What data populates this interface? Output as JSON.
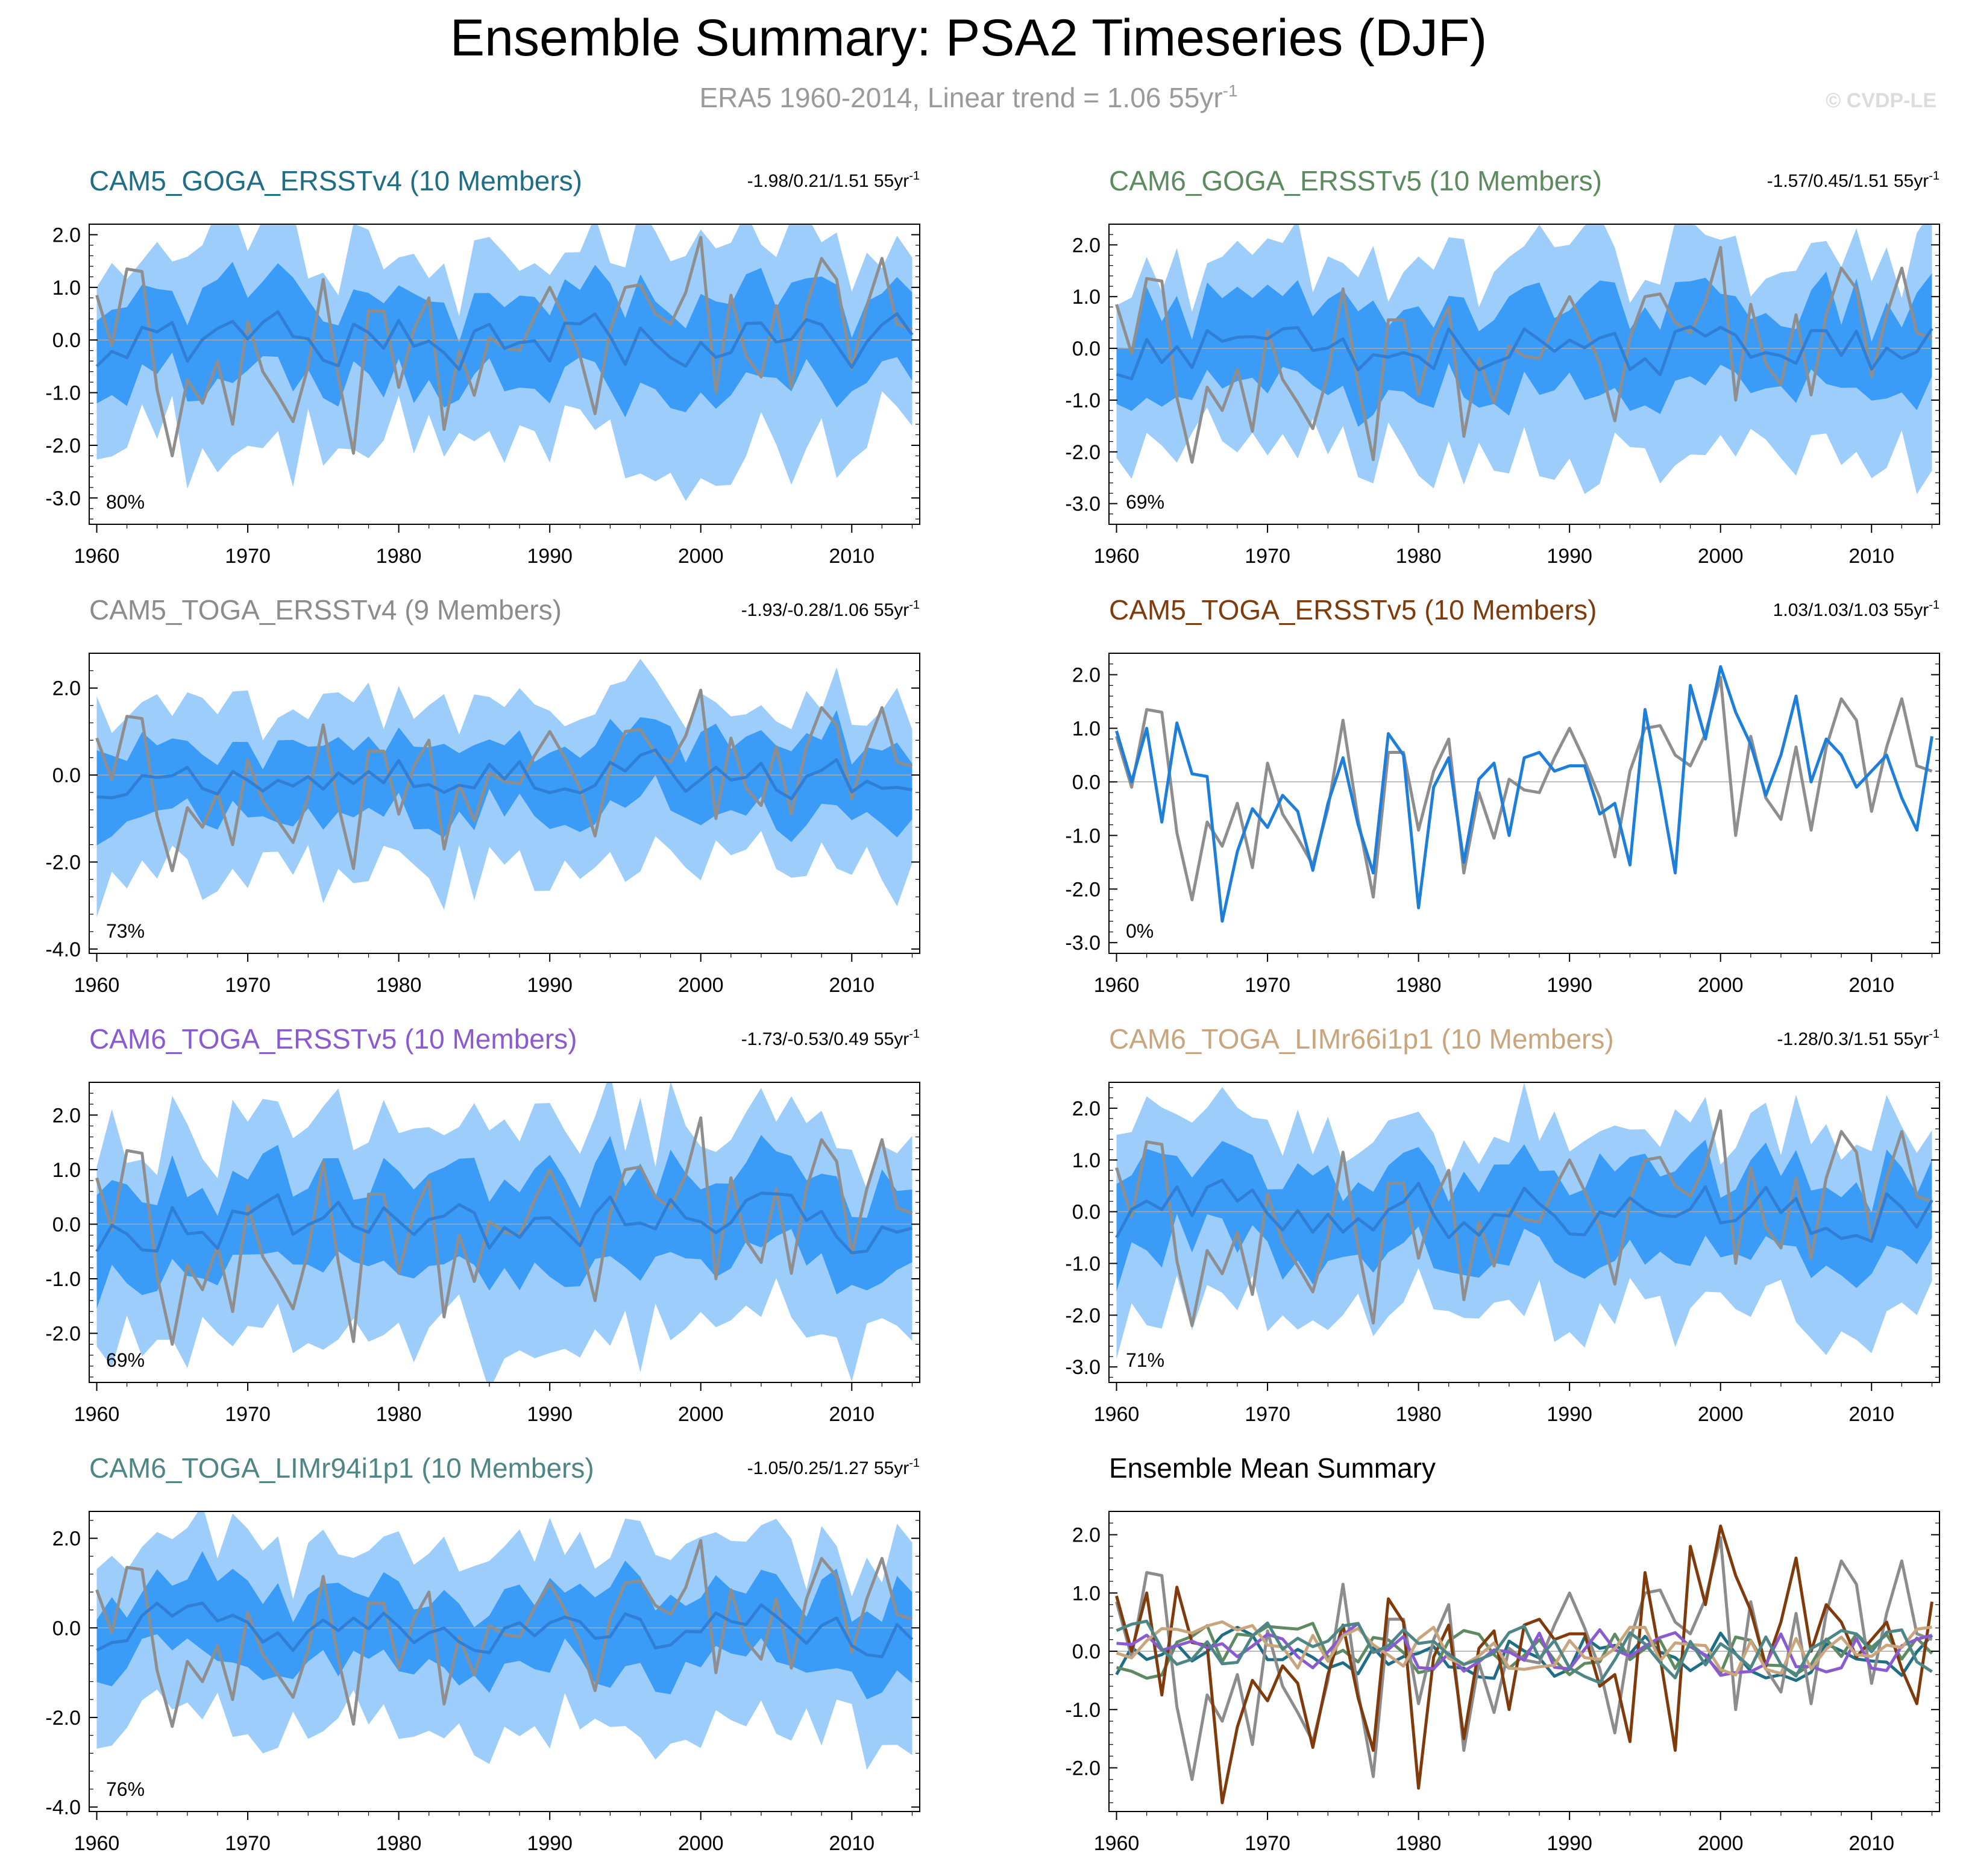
{
  "figure": {
    "title": "Ensemble Summary: PSA2 Timeseries (DJF)",
    "subtitle_main": "ERA5 1960-2014, Linear trend = 1.06 55yr",
    "subtitle_sup": "-1",
    "watermark": "© CVDP-LE"
  },
  "colors": {
    "outer_band": "#9dcdfb",
    "inner_band": "#3b9cf8",
    "ens_mean": "#2f7fd6",
    "obs": "#8e8e8e",
    "single_member": "#1e7fdb",
    "trend_unit": "55yr",
    "trend_unit_sup": "-1"
  },
  "x_tick_labels": [
    "1960",
    "1970",
    "1980",
    "1990",
    "2000",
    "2010"
  ],
  "chart_data": [
    {
      "type": "area",
      "name": "CAM5_GOGA_ERSSTv4",
      "title": "CAM5_GOGA_ERSSTv4 (10 Members)",
      "title_color": "#1f6e86",
      "trend_text": "-1.98/0.21/1.51",
      "percent_text": "80%",
      "ylim": [
        -3.5,
        2.2
      ],
      "yticks": [
        2.0,
        1.0,
        0.0,
        -1.0,
        -2.0,
        -3.0
      ],
      "ytick_labels": [
        "2.0",
        "1.0",
        "0.0",
        "-1.0",
        "-2.0",
        "-3.0"
      ],
      "seed": 11
    },
    {
      "type": "area",
      "name": "CAM6_GOGA_ERSSTv5",
      "title": "CAM6_GOGA_ERSSTv5 (10 Members)",
      "title_color": "#5e8a61",
      "trend_text": "-1.57/0.45/1.51",
      "percent_text": "69%",
      "ylim": [
        -3.4,
        2.4
      ],
      "yticks": [
        2.0,
        1.0,
        0.0,
        -1.0,
        -2.0,
        -3.0
      ],
      "ytick_labels": [
        "2.0",
        "1.0",
        "0.0",
        "-1.0",
        "-2.0",
        "-3.0"
      ],
      "seed": 23
    },
    {
      "type": "area",
      "name": "CAM5_TOGA_ERSSTv4",
      "title": "CAM5_TOGA_ERSSTv4 (9 Members)",
      "title_color": "#8c8c8c",
      "trend_text": "-1.93/-0.28/1.06",
      "percent_text": "73%",
      "ylim": [
        -4.1,
        2.8
      ],
      "yticks": [
        2.0,
        0.0,
        -2.0,
        -4.0
      ],
      "ytick_labels": [
        "2.0",
        "0.0",
        "-2.0",
        "-4.0"
      ],
      "seed": 37
    },
    {
      "type": "line",
      "name": "CAM5_TOGA_ERSSTv5",
      "title": "CAM5_TOGA_ERSSTv5 (10 Members)",
      "title_color": "#7f3b0c",
      "trend_text": "1.03/1.03/1.03",
      "percent_text": "0%",
      "ylim": [
        -3.2,
        2.4
      ],
      "yticks": [
        2.0,
        1.0,
        0.0,
        -1.0,
        -2.0,
        -3.0
      ],
      "ytick_labels": [
        "2.0",
        "1.0",
        "0.0",
        "-1.0",
        "-2.0",
        "-3.0"
      ],
      "member": [
        0.95,
        0.0,
        1.0,
        -0.75,
        1.1,
        0.15,
        0.1,
        -2.6,
        -1.3,
        -0.5,
        -0.85,
        -0.25,
        -0.55,
        -1.65,
        -0.4,
        0.45,
        -0.8,
        -1.7,
        0.9,
        0.5,
        -2.35,
        -0.1,
        0.45,
        -1.5,
        0.05,
        0.35,
        -1.0,
        0.45,
        0.55,
        0.2,
        0.3,
        0.3,
        -0.6,
        -0.4,
        -1.55,
        1.35,
        -0.1,
        -1.7,
        1.8,
        0.8,
        2.15,
        1.3,
        0.7,
        -0.25,
        0.5,
        1.6,
        0.0,
        0.8,
        0.5,
        -0.1,
        0.2,
        0.5,
        -0.3,
        -0.9,
        0.85
      ],
      "seed": 41
    },
    {
      "type": "area",
      "name": "CAM6_TOGA_ERSSTv5",
      "title": "CAM6_TOGA_ERSSTv5 (10 Members)",
      "title_color": "#8a5ad1",
      "trend_text": "-1.73/-0.53/0.49",
      "percent_text": "69%",
      "ylim": [
        -2.9,
        2.6
      ],
      "yticks": [
        2.0,
        1.0,
        0.0,
        -1.0,
        -2.0
      ],
      "ytick_labels": [
        "2.0",
        "1.0",
        "0.0",
        "-1.0",
        "-2.0"
      ],
      "seed": 53
    },
    {
      "type": "area",
      "name": "CAM6_TOGA_LIMr66i1p1",
      "title": "CAM6_TOGA_LIMr66i1p1 (10 Members)",
      "title_color": "#c8a57d",
      "trend_text": "-1.28/0.3/1.51",
      "percent_text": "71%",
      "ylim": [
        -3.3,
        2.5
      ],
      "yticks": [
        2.0,
        1.0,
        0.0,
        -1.0,
        -2.0,
        -3.0
      ],
      "ytick_labels": [
        "2.0",
        "1.0",
        "0.0",
        "-1.0",
        "-2.0",
        "-3.0"
      ],
      "seed": 67
    },
    {
      "type": "area",
      "name": "CAM6_TOGA_LIMr94i1p1",
      "title": "CAM6_TOGA_LIMr94i1p1 (10 Members)",
      "title_color": "#4e8585",
      "trend_text": "-1.05/0.25/1.27",
      "percent_text": "76%",
      "ylim": [
        -4.1,
        2.6
      ],
      "yticks": [
        2.0,
        0.0,
        -2.0,
        -4.0
      ],
      "ytick_labels": [
        "2.0",
        "0.0",
        "-2.0",
        "-4.0"
      ],
      "seed": 79
    },
    {
      "type": "line",
      "name": "Ensemble Mean Summary",
      "title": "Ensemble Mean Summary",
      "title_color": "#000000",
      "ylim": [
        -2.75,
        2.4
      ],
      "yticks": [
        2.0,
        1.0,
        0.0,
        -1.0,
        -2.0
      ],
      "ytick_labels": [
        "2.0",
        "1.0",
        "0.0",
        "-1.0",
        "-2.0"
      ],
      "series_colors": [
        "#1f6e86",
        "#5e8a61",
        "#8c8c8c",
        "#7f3b0c",
        "#8a5ad1",
        "#c8a57d",
        "#4e8585"
      ],
      "seed": 97
    }
  ],
  "shared_series": {
    "x_start": 1960,
    "x_end": 2014,
    "xlim": [
      1959.5,
      2014.5
    ],
    "obs_era5": [
      0.85,
      -0.1,
      1.35,
      1.3,
      -0.95,
      -2.2,
      -0.75,
      -1.2,
      -0.4,
      -1.6,
      0.35,
      -0.6,
      -1.05,
      -1.55,
      -0.5,
      1.15,
      -0.7,
      -2.15,
      0.55,
      0.55,
      -0.9,
      0.2,
      0.8,
      -1.7,
      -0.2,
      -1.05,
      0.05,
      -0.15,
      -0.2,
      0.45,
      1.0,
      0.4,
      -0.3,
      -1.4,
      0.2,
      1.0,
      1.05,
      0.5,
      0.3,
      0.9,
      1.95,
      -1.0,
      0.85,
      -0.3,
      -0.7,
      0.65,
      -0.9,
      0.65,
      1.55,
      1.15,
      -0.55,
      0.65,
      1.55,
      0.3,
      0.2
    ]
  }
}
